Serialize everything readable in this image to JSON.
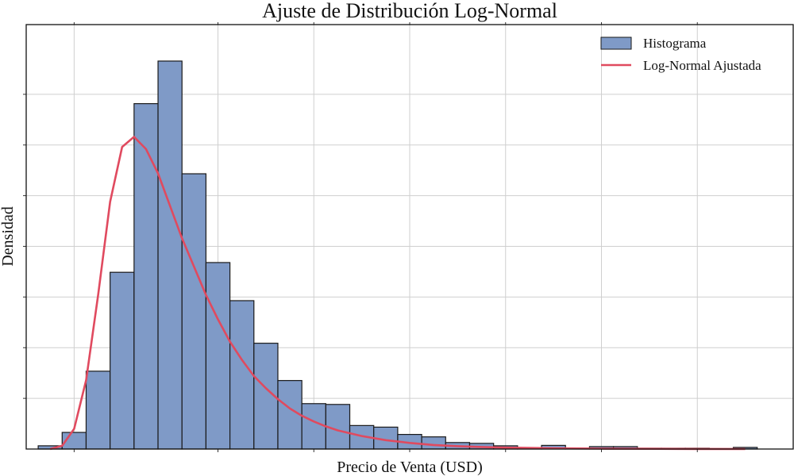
{
  "chart_data": {
    "type": "histogram",
    "title": "Ajuste de Distribución Log-Normal",
    "xlabel": "Precio de Venta (USD)",
    "ylabel": "Densidad",
    "grid": true,
    "legend_position": "top-right",
    "bin_range": [
      0.5,
      30.5
    ],
    "bin_width": 1,
    "xlim": [
      0,
      32
    ],
    "ylim": [
      0,
      100
    ],
    "x_tick_labels_visible": false,
    "y_tick_labels_visible": false,
    "series": [
      {
        "name": "Histograma",
        "kind": "bar",
        "color": "#7f9ac7",
        "edge_color": "#1a1a1a",
        "values": [
          0.8,
          4.1,
          19.2,
          43.6,
          85.2,
          95.7,
          67.9,
          46.0,
          36.6,
          26.1,
          16.9,
          11.2,
          11.0,
          5.8,
          5.4,
          3.6,
          3.0,
          1.6,
          1.4,
          0.8,
          0.2,
          0.9,
          0.2,
          0.6,
          0.6,
          0.2,
          0.2,
          0.2,
          0.1,
          0.4
        ]
      },
      {
        "name": "Log-Normal Ajustada",
        "kind": "line",
        "color": "#e04a5f",
        "x": [
          1.0,
          1.5,
          2.0,
          2.5,
          3.0,
          3.5,
          4.0,
          4.5,
          5.0,
          5.5,
          6.0,
          6.5,
          7.0,
          7.5,
          8.0,
          8.5,
          9.0,
          9.5,
          10.0,
          10.5,
          11.0,
          11.5,
          12.0,
          12.5,
          13.0,
          14.0,
          15.0,
          16.0,
          17.0,
          18.0,
          19.0,
          20.0,
          22.0,
          24.0,
          26.0,
          28.0,
          30.0
        ],
        "y": [
          0.0,
          0.8,
          5.0,
          17.0,
          38.0,
          61.0,
          74.5,
          77.0,
          74.0,
          68.0,
          60.0,
          52.0,
          45.0,
          38.0,
          32.0,
          26.5,
          22.0,
          18.0,
          15.0,
          12.3,
          10.0,
          8.2,
          6.8,
          5.6,
          4.6,
          3.2,
          2.2,
          1.5,
          1.0,
          0.7,
          0.5,
          0.35,
          0.18,
          0.1,
          0.05,
          0.02,
          0.0
        ]
      }
    ]
  }
}
